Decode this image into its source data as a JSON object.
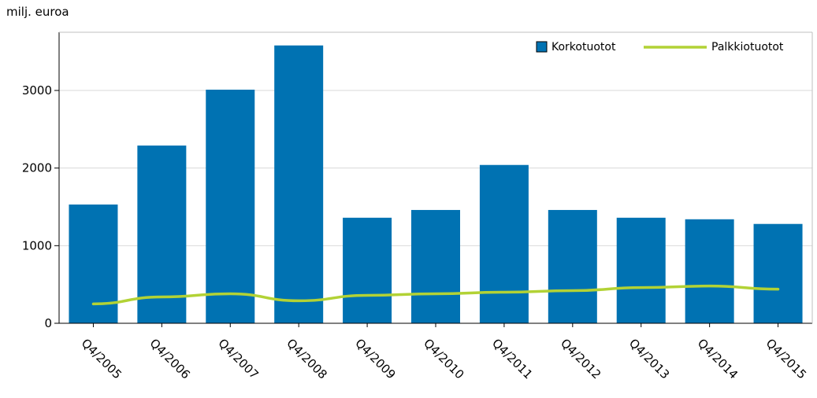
{
  "chart_data": {
    "type": "bar",
    "title": "",
    "unit_label": "milj. euroa",
    "xlabel": "",
    "ylabel": "",
    "categories": [
      "Q4/2005",
      "Q4/2006",
      "Q4/2007",
      "Q4/2008",
      "Q4/2009",
      "Q4/2010",
      "Q4/2011",
      "Q4/2012",
      "Q4/2013",
      "Q4/2014",
      "Q4/2015"
    ],
    "ylim": [
      0,
      3750
    ],
    "yticks": [
      0,
      1000,
      2000,
      3000
    ],
    "grid": true,
    "legend_position": "top-right",
    "series": [
      {
        "name": "Korkotuotot",
        "kind": "bar",
        "color": "#0072b2",
        "values": [
          1530,
          2290,
          3010,
          3580,
          1360,
          1460,
          2040,
          1460,
          1360,
          1340,
          1280
        ]
      },
      {
        "name": "Palkkiotuotot",
        "kind": "line",
        "color": "#b2d235",
        "values": [
          250,
          340,
          380,
          290,
          360,
          380,
          400,
          420,
          460,
          480,
          440
        ]
      }
    ]
  }
}
